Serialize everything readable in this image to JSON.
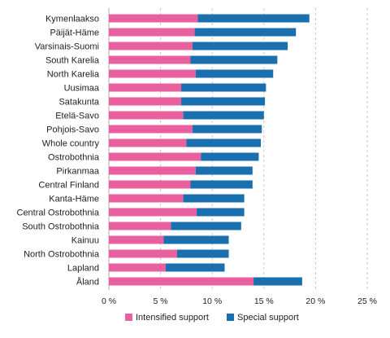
{
  "chart_data": {
    "type": "bar",
    "orientation": "horizontal",
    "stacked": true,
    "categories": [
      "Kymenlaakso",
      "Päijät-Häme",
      "Varsinais-Suomi",
      "South Karelia",
      "North Karelia",
      "Uusimaa",
      "Satakunta",
      "Etelä-Savo",
      "Pohjois-Savo",
      "Whole country",
      "Ostrobothnia",
      "Pirkanmaa",
      "Central Finland",
      "Kanta-Häme",
      "Central Ostrobothnia",
      "South Ostrobothnia",
      "Kainuu",
      "North Ostrobothnia",
      "Lapland",
      "Åland"
    ],
    "series": [
      {
        "name": "Intensified support",
        "color": "#e8619e",
        "values": [
          8.6,
          8.3,
          8.1,
          7.9,
          8.4,
          7.0,
          7.0,
          7.2,
          8.1,
          7.5,
          8.9,
          8.4,
          7.9,
          7.2,
          8.5,
          6.0,
          5.3,
          6.6,
          5.5,
          14.0
        ]
      },
      {
        "name": "Special support",
        "color": "#1a6faf",
        "values": [
          10.8,
          9.8,
          9.2,
          8.4,
          7.5,
          8.2,
          8.1,
          7.8,
          6.7,
          7.2,
          5.6,
          5.5,
          6.0,
          5.9,
          4.6,
          6.8,
          6.3,
          5.0,
          5.7,
          4.7
        ]
      }
    ],
    "xlim": [
      0,
      25
    ],
    "x_ticks": [
      "0 %",
      "5 %",
      "10 %",
      "15 %",
      "20 %",
      "25 %"
    ],
    "grid": "vertical dashed",
    "legend_position": "bottom"
  }
}
